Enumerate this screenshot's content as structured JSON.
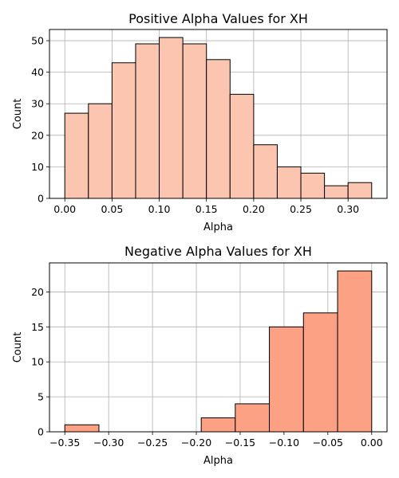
{
  "chart_data": [
    {
      "type": "bar",
      "title": "Positive Alpha Values for XH",
      "xlabel": "Alpha",
      "ylabel": "Count",
      "xlim": [
        -0.01625,
        0.34125
      ],
      "ylim": [
        0,
        53.55
      ],
      "xticks": [
        0.0,
        0.05,
        0.1,
        0.15,
        0.2,
        0.25,
        0.3
      ],
      "xtick_labels": [
        "0.00",
        "0.05",
        "0.10",
        "0.15",
        "0.20",
        "0.25",
        "0.30"
      ],
      "yticks": [
        0,
        10,
        20,
        30,
        40,
        50
      ],
      "ytick_labels": [
        "0",
        "10",
        "20",
        "30",
        "40",
        "50"
      ],
      "grid": true,
      "bar_color": "#fcc5b0",
      "bars": [
        {
          "x0": 0.0,
          "x1": 0.025,
          "value": 27
        },
        {
          "x0": 0.025,
          "x1": 0.05,
          "value": 30
        },
        {
          "x0": 0.05,
          "x1": 0.075,
          "value": 43
        },
        {
          "x0": 0.075,
          "x1": 0.1,
          "value": 49
        },
        {
          "x0": 0.1,
          "x1": 0.125,
          "value": 51
        },
        {
          "x0": 0.125,
          "x1": 0.15,
          "value": 49
        },
        {
          "x0": 0.15,
          "x1": 0.175,
          "value": 44
        },
        {
          "x0": 0.175,
          "x1": 0.2,
          "value": 33
        },
        {
          "x0": 0.2,
          "x1": 0.225,
          "value": 17
        },
        {
          "x0": 0.225,
          "x1": 0.25,
          "value": 10
        },
        {
          "x0": 0.25,
          "x1": 0.275,
          "value": 8
        },
        {
          "x0": 0.275,
          "x1": 0.3,
          "value": 4
        },
        {
          "x0": 0.3,
          "x1": 0.325,
          "value": 5
        }
      ]
    },
    {
      "type": "bar",
      "title": "Negative Alpha Values for XH",
      "xlabel": "Alpha",
      "ylabel": "Count",
      "xlim": [
        -0.3675,
        0.0175
      ],
      "ylim": [
        0,
        24.15
      ],
      "xticks": [
        -0.35,
        -0.3,
        -0.25,
        -0.2,
        -0.15,
        -0.1,
        -0.05,
        0.0
      ],
      "xtick_labels": [
        "−0.35",
        "−0.30",
        "−0.25",
        "−0.20",
        "−0.15",
        "−0.10",
        "−0.05",
        "0.00"
      ],
      "yticks": [
        0,
        5,
        10,
        15,
        20
      ],
      "ytick_labels": [
        "0",
        "5",
        "10",
        "15",
        "20"
      ],
      "grid": true,
      "bar_color": "#fca183",
      "bars": [
        {
          "x0": -0.35,
          "x1": -0.3111,
          "value": 1
        },
        {
          "x0": -0.1944,
          "x1": -0.1556,
          "value": 2
        },
        {
          "x0": -0.1556,
          "x1": -0.1167,
          "value": 4
        },
        {
          "x0": -0.1167,
          "x1": -0.0778,
          "value": 15
        },
        {
          "x0": -0.0778,
          "x1": -0.0389,
          "value": 17
        },
        {
          "x0": -0.0389,
          "x1": 0.0,
          "value": 23
        }
      ]
    }
  ]
}
